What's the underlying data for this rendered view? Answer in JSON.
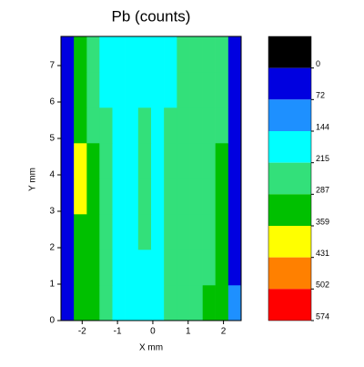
{
  "chart_data": {
    "type": "contour",
    "title": "Pb (counts)",
    "x_label": "X mm",
    "y_label": "Y mm",
    "xlim": [
      -2.6,
      2.5
    ],
    "ylim": [
      0,
      7.8
    ],
    "xticks": [
      -2,
      -1,
      0,
      1,
      2
    ],
    "yticks": [
      0,
      1,
      2,
      3,
      4,
      5,
      6,
      7
    ],
    "x": [
      -2.42,
      -2.05,
      -1.69,
      -1.33,
      -0.96,
      -0.6,
      -0.23,
      0.13,
      0.5,
      0.86,
      1.23,
      1.59,
      1.95,
      2.32
    ],
    "y": [
      0.49,
      1.46,
      2.44,
      3.41,
      4.39,
      5.36,
      6.34,
      7.31
    ],
    "z": [
      [
        40,
        320,
        290,
        240,
        190,
        180,
        190,
        200,
        230,
        250,
        270,
        300,
        330,
        80
      ],
      [
        40,
        340,
        300,
        250,
        180,
        170,
        210,
        190,
        240,
        250,
        260,
        280,
        320,
        60
      ],
      [
        40,
        330,
        290,
        240,
        180,
        170,
        220,
        200,
        240,
        250,
        260,
        280,
        300,
        60
      ],
      [
        40,
        380,
        300,
        250,
        180,
        170,
        220,
        190,
        230,
        250,
        260,
        270,
        290,
        50
      ],
      [
        40,
        400,
        290,
        240,
        180,
        170,
        220,
        180,
        230,
        250,
        260,
        270,
        290,
        40
      ],
      [
        40,
        330,
        280,
        230,
        180,
        170,
        220,
        180,
        220,
        240,
        250,
        260,
        280,
        30
      ],
      [
        40,
        320,
        270,
        200,
        170,
        160,
        200,
        170,
        190,
        230,
        250,
        260,
        270,
        30
      ],
      [
        40,
        300,
        260,
        200,
        170,
        160,
        180,
        170,
        180,
        220,
        240,
        250,
        250,
        30
      ]
    ],
    "levels": [
      0,
      72,
      144,
      215,
      287,
      359,
      431,
      502,
      574
    ],
    "colors": [
      "#000000",
      "#0000e0",
      "#1e90ff",
      "#00ffff",
      "#33e07a",
      "#00c000",
      "#ffff00",
      "#ff8000",
      "#ff0000"
    ]
  }
}
